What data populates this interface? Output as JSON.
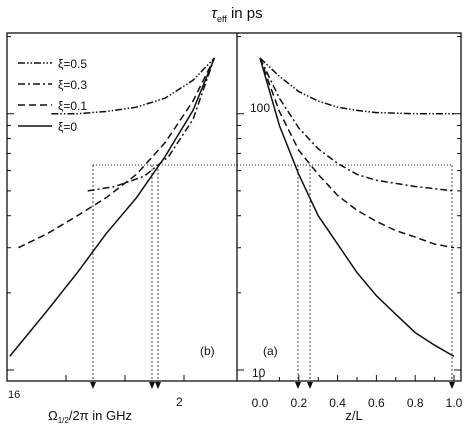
{
  "chart_data": [
    {
      "panel": "b",
      "type": "line",
      "label": "(b)",
      "xlabel": "Ω1/2/2π in GHz",
      "ylabel": "τeff in ps",
      "x_scale": "log-reversed",
      "y_scale": "log",
      "xlim": [
        16,
        1.3
      ],
      "ylim": [
        8,
        200
      ],
      "x_tick_labels": [
        "16",
        "2"
      ],
      "y_tick_labels": [
        "100",
        "10"
      ],
      "legend_position": "top-left",
      "series": [
        {
          "name": "ξ=0.5",
          "style": "dash-dot-dot",
          "x": [
            9.5,
            7.0,
            5.0,
            3.5,
            2.5,
            1.8,
            1.4
          ],
          "y": [
            100,
            100,
            102,
            106,
            115,
            135,
            165
          ]
        },
        {
          "name": "ξ=0.3",
          "style": "dash-dot",
          "x": [
            6.2,
            4.5,
            3.2,
            2.4,
            1.8,
            1.4
          ],
          "y": [
            50,
            52,
            57,
            68,
            95,
            165
          ]
        },
        {
          "name": "ξ=0.1",
          "style": "dashed",
          "x": [
            14.0,
            10.0,
            7.0,
            5.0,
            3.5,
            2.5,
            1.8,
            1.4
          ],
          "y": [
            30,
            34,
            40,
            47,
            58,
            77,
            112,
            165
          ]
        },
        {
          "name": "ξ=0",
          "style": "solid",
          "x": [
            15.5,
            10.0,
            7.0,
            5.0,
            3.5,
            2.5,
            1.8,
            1.4
          ],
          "y": [
            11.3,
            17,
            24,
            34,
            47,
            68,
            103,
            165
          ]
        }
      ]
    },
    {
      "panel": "a",
      "type": "line",
      "label": "(a)",
      "xlabel": "z/L",
      "ylabel": "τeff in ps",
      "y_scale": "log",
      "xlim": [
        -0.05,
        1.02
      ],
      "ylim": [
        8,
        200
      ],
      "x_tick_labels": [
        "0.0",
        "0.2",
        "0.4",
        "0.6",
        "0.8",
        "1.0"
      ],
      "y_tick_labels": [
        "100",
        "10"
      ],
      "series": [
        {
          "name": "ξ=0.5",
          "style": "dash-dot-dot",
          "x": [
            0.0,
            0.1,
            0.2,
            0.3,
            0.4,
            0.5,
            0.6,
            0.8,
            1.0
          ],
          "y": [
            165,
            140,
            122,
            112,
            106,
            103,
            101,
            100,
            100
          ]
        },
        {
          "name": "ξ=0.3",
          "style": "dash-dot",
          "x": [
            0.0,
            0.1,
            0.2,
            0.3,
            0.4,
            0.5,
            0.6,
            0.8,
            1.0
          ],
          "y": [
            165,
            115,
            88,
            73,
            64,
            58,
            55,
            52,
            50
          ]
        },
        {
          "name": "ξ=0.1",
          "style": "dashed",
          "x": [
            0.0,
            0.1,
            0.2,
            0.3,
            0.4,
            0.5,
            0.6,
            0.7,
            0.8,
            0.9,
            1.0
          ],
          "y": [
            165,
            102,
            72,
            58,
            48,
            42,
            38,
            35,
            33,
            31,
            30
          ]
        },
        {
          "name": "ξ=0",
          "style": "solid",
          "x": [
            0.0,
            0.1,
            0.2,
            0.3,
            0.4,
            0.5,
            0.6,
            0.7,
            0.8,
            0.9,
            1.0
          ],
          "y": [
            165,
            90,
            58,
            40,
            31,
            24,
            19.5,
            16.5,
            14,
            12.5,
            11.3
          ]
        }
      ],
      "annotations": [
        "horizontal dotted line at τeff ≈ 50 ps with dashed vertical arrows to the z/L axis near 0.2 and 0.25, and to the frequency axis in panel (b)"
      ]
    }
  ],
  "text": {
    "title_tau": "τ",
    "title_sub": "eff",
    "title_rest": " in ps",
    "xlabel_b_omega": "Ω",
    "xlabel_b_sub": "1/2",
    "xlabel_b_rest": "/2π in GHz",
    "xlabel_a": "z/L",
    "panel_b": "(b)",
    "panel_a": "(a)",
    "tick_16": "16",
    "tick_2": "2",
    "ytick_100": "100",
    "ytick_10": "10",
    "xticks_a": [
      "0.0",
      "0.2",
      "0.4",
      "0.6",
      "0.8",
      "1.0"
    ],
    "legend": [
      "ξ=0.5",
      "ξ=0.3",
      "ξ=0.1",
      "ξ=0"
    ]
  }
}
